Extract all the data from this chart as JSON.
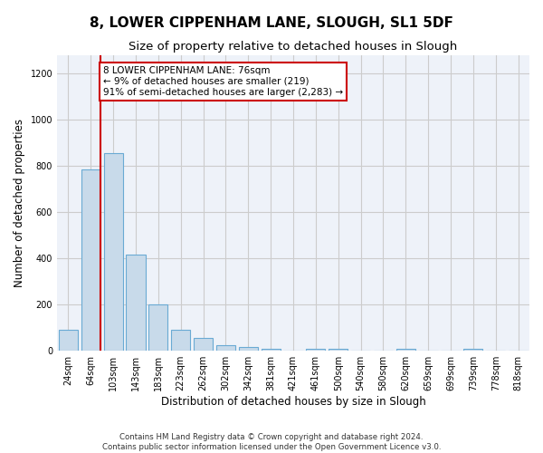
{
  "title": "8, LOWER CIPPENHAM LANE, SLOUGH, SL1 5DF",
  "subtitle": "Size of property relative to detached houses in Slough",
  "xlabel": "Distribution of detached houses by size in Slough",
  "ylabel": "Number of detached properties",
  "footer_line1": "Contains HM Land Registry data © Crown copyright and database right 2024.",
  "footer_line2": "Contains public sector information licensed under the Open Government Licence v3.0.",
  "bar_labels": [
    "24sqm",
    "64sqm",
    "103sqm",
    "143sqm",
    "183sqm",
    "223sqm",
    "262sqm",
    "302sqm",
    "342sqm",
    "381sqm",
    "421sqm",
    "461sqm",
    "500sqm",
    "540sqm",
    "580sqm",
    "620sqm",
    "659sqm",
    "699sqm",
    "739sqm",
    "778sqm",
    "818sqm"
  ],
  "bar_heights": [
    90,
    785,
    855,
    415,
    200,
    90,
    55,
    25,
    15,
    10,
    0,
    10,
    10,
    0,
    0,
    10,
    0,
    0,
    10,
    0,
    0
  ],
  "bar_color": "#c8daea",
  "bar_edge_color": "#6aaad4",
  "bar_edge_width": 0.8,
  "red_line_color": "#cc0000",
  "annotation_box_text": "8 LOWER CIPPENHAM LANE: 76sqm\n← 9% of detached houses are smaller (219)\n91% of semi-detached houses are larger (2,283) →",
  "annotation_box_color": "#cc0000",
  "annotation_box_facecolor": "white",
  "annotation_fontsize": 7.5,
  "ylim": [
    0,
    1280
  ],
  "yticks": [
    0,
    200,
    400,
    600,
    800,
    1000,
    1200
  ],
  "grid_color": "#cccccc",
  "background_color": "#eef2f9",
  "title_fontsize": 11,
  "subtitle_fontsize": 9.5,
  "xlabel_fontsize": 8.5,
  "ylabel_fontsize": 8.5,
  "tick_fontsize": 7,
  "red_line_bar_index": 1
}
